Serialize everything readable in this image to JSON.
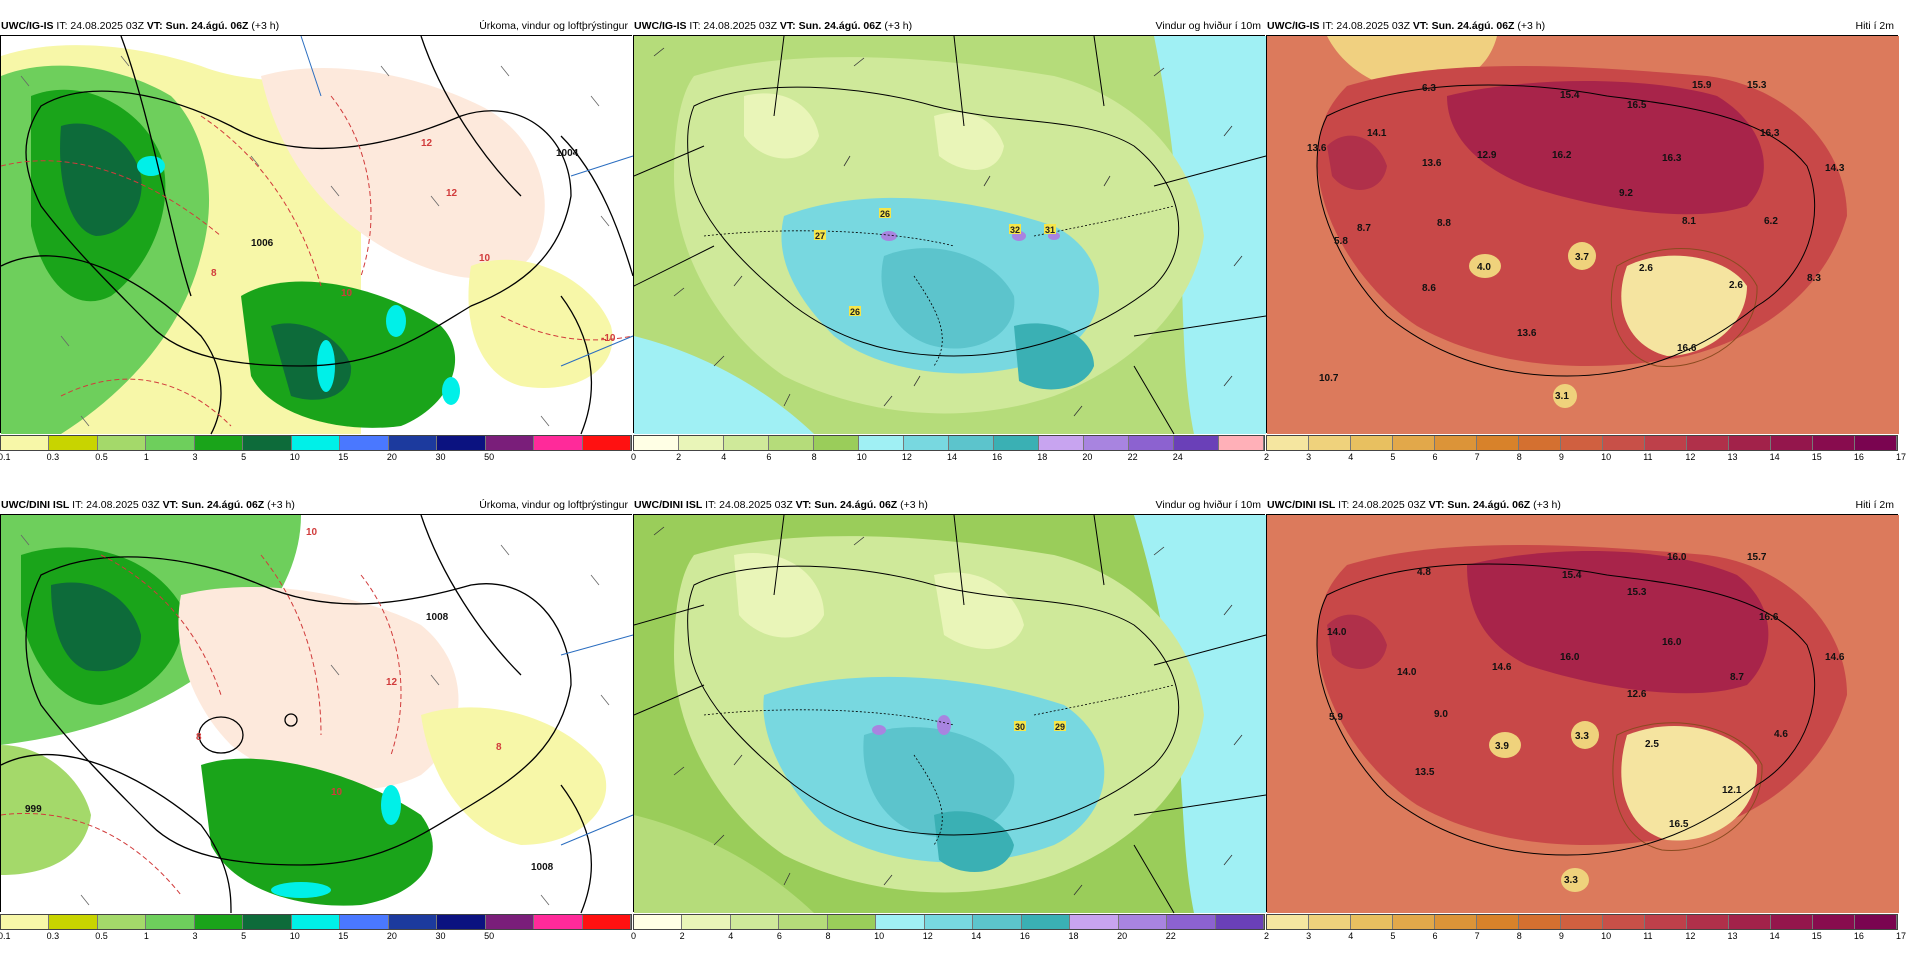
{
  "panels": [
    {
      "id": "p1",
      "type": "precip",
      "model": "UWC/IG-IS",
      "it_label": "IT: 24.08.2025 03Z",
      "vt_label": "VT: Sun. 24.ágú. 06Z",
      "lead": "(+3 h)",
      "desc": "Úrkoma, vindur og loftþrýstingur",
      "colors": [
        "#f7f7a8",
        "#c8d400",
        "#a4d96a",
        "#6ecf5c",
        "#1aa41a",
        "#0d6b3a",
        "#00f0e8",
        "#4a78ff",
        "#1c3a9e",
        "#0b1280",
        "#7a1e7a",
        "#ff2a9a",
        "#ff1111"
      ],
      "ticks": [
        "0.1",
        "0.3",
        "0.5",
        "1",
        "3",
        "5",
        "10",
        "15",
        "20",
        "30",
        "50"
      ],
      "labels": [
        {
          "text": "12",
          "color": "#d13b3b"
        },
        {
          "text": "12",
          "color": "#d13b3b"
        },
        {
          "text": "10",
          "color": "#d13b3b"
        },
        {
          "text": "10",
          "color": "#d13b3b"
        },
        {
          "text": "8",
          "color": "#d13b3b"
        },
        {
          "text": "-10",
          "color": "#d13b3b"
        },
        {
          "text": "1004",
          "color": "#111"
        },
        {
          "text": "1006",
          "color": "#111"
        }
      ]
    },
    {
      "id": "p2",
      "type": "wind",
      "model": "UWC/IG-IS",
      "it_label": "IT: 24.08.2025 03Z",
      "vt_label": "VT: Sun. 24.ágú. 06Z",
      "lead": "(+3 h)",
      "desc": "Vindur og hviður í 10m",
      "colors": [
        "#ffffe5",
        "#e9f5b8",
        "#cfe99a",
        "#b5dc7a",
        "#9acd5a",
        "#a0f0f4",
        "#78d8e0",
        "#5cc4cc",
        "#3ab0b4",
        "#c8a4f0",
        "#a884e0",
        "#8c62d0",
        "#6a40b8",
        "#ffb0b8"
      ],
      "ticks": [
        "0",
        "2",
        "4",
        "6",
        "8",
        "10",
        "12",
        "14",
        "16",
        "18",
        "20",
        "22",
        "24"
      ],
      "labels": [
        "26",
        "27",
        "32",
        "31",
        "26"
      ]
    },
    {
      "id": "p3",
      "type": "temp",
      "model": "UWC/IG-IS",
      "it_label": "IT: 24.08.2025 03Z",
      "vt_label": "VT: Sun. 24.ágú. 06Z",
      "lead": "(+3 h)",
      "desc": "Hiti í 2m",
      "colors": [
        "#f5e6a0",
        "#efd27c",
        "#e8c060",
        "#e2a84a",
        "#dc9438",
        "#d8822a",
        "#d47030",
        "#d06040",
        "#c85048",
        "#be404a",
        "#b0304a",
        "#a2224a",
        "#94164c",
        "#880c4e",
        "#7a0450"
      ],
      "ticks": [
        "2",
        "3",
        "4",
        "5",
        "6",
        "7",
        "8",
        "9",
        "10",
        "11",
        "12",
        "13",
        "14",
        "15",
        "16",
        "17"
      ],
      "labels": [
        "6.3",
        "15.4",
        "16.5",
        "15.9",
        "15.3",
        "14.1",
        "13.6",
        "13.6",
        "12.9",
        "16.2",
        "16.3",
        "16.3",
        "14.3",
        "9.2",
        "8.7",
        "8.8",
        "8.1",
        "6.2",
        "5.8",
        "4.0",
        "3.7",
        "2.6",
        "2.6",
        "8.3",
        "8.6",
        "13.6",
        "16.6",
        "10.7",
        "3.1"
      ]
    },
    {
      "id": "p4",
      "type": "precip",
      "model": "UWC/DINI ISL",
      "it_label": "IT: 24.08.2025 03Z",
      "vt_label": "VT: Sun. 24.ágú. 06Z",
      "lead": "(+3 h)",
      "desc": "Úrkoma, vindur og loftþrýstingur",
      "colors": [
        "#f7f7a8",
        "#c8d400",
        "#a4d96a",
        "#6ecf5c",
        "#1aa41a",
        "#0d6b3a",
        "#00f0e8",
        "#4a78ff",
        "#1c3a9e",
        "#0b1280",
        "#7a1e7a",
        "#ff2a9a",
        "#ff1111"
      ],
      "ticks": [
        "0.1",
        "0.3",
        "0.5",
        "1",
        "3",
        "5",
        "10",
        "15",
        "20",
        "30",
        "50"
      ],
      "labels": [
        {
          "text": "10",
          "color": "#d13b3b"
        },
        {
          "text": "12",
          "color": "#d13b3b"
        },
        {
          "text": "10",
          "color": "#d13b3b"
        },
        {
          "text": "8",
          "color": "#d13b3b"
        },
        {
          "text": "8",
          "color": "#d13b3b"
        },
        {
          "text": "999",
          "color": "#111"
        },
        {
          "text": "1008",
          "color": "#111"
        },
        {
          "text": "1008",
          "color": "#111"
        }
      ]
    },
    {
      "id": "p5",
      "type": "wind",
      "model": "UWC/DINI ISL",
      "it_label": "IT: 24.08.2025 03Z",
      "vt_label": "VT: Sun. 24.ágú. 06Z",
      "lead": "(+3 h)",
      "desc": "Vindur og hviður í 10m",
      "colors": [
        "#ffffe5",
        "#e9f5b8",
        "#cfe99a",
        "#b5dc7a",
        "#9acd5a",
        "#a0f0f4",
        "#78d8e0",
        "#5cc4cc",
        "#3ab0b4",
        "#c8a4f0",
        "#a884e0",
        "#8c62d0",
        "#6a40b8"
      ],
      "ticks": [
        "0",
        "2",
        "4",
        "6",
        "8",
        "10",
        "12",
        "14",
        "16",
        "18",
        "20",
        "22"
      ],
      "labels": [
        "30",
        "29"
      ]
    },
    {
      "id": "p6",
      "type": "temp",
      "model": "UWC/DINI ISL",
      "it_label": "IT: 24.08.2025 03Z",
      "vt_label": "VT: Sun. 24.ágú. 06Z",
      "lead": "(+3 h)",
      "desc": "Hiti í 2m",
      "colors": [
        "#f5e6a0",
        "#efd27c",
        "#e8c060",
        "#e2a84a",
        "#dc9438",
        "#d8822a",
        "#d47030",
        "#d06040",
        "#c85048",
        "#be404a",
        "#b0304a",
        "#a2224a",
        "#94164c",
        "#880c4e",
        "#7a0450"
      ],
      "ticks": [
        "2",
        "3",
        "4",
        "5",
        "6",
        "7",
        "8",
        "9",
        "10",
        "11",
        "12",
        "13",
        "14",
        "15",
        "16",
        "17"
      ],
      "labels": [
        "4.8",
        "15.4",
        "16.0",
        "15.7",
        "15.3",
        "14.0",
        "14.0",
        "14.6",
        "16.0",
        "16.0",
        "16.6",
        "14.6",
        "12.6",
        "8.7",
        "5.9",
        "9.0",
        "3.9",
        "3.3",
        "2.5",
        "4.6",
        "13.5",
        "12.1",
        "16.5",
        "3.3"
      ]
    }
  ]
}
